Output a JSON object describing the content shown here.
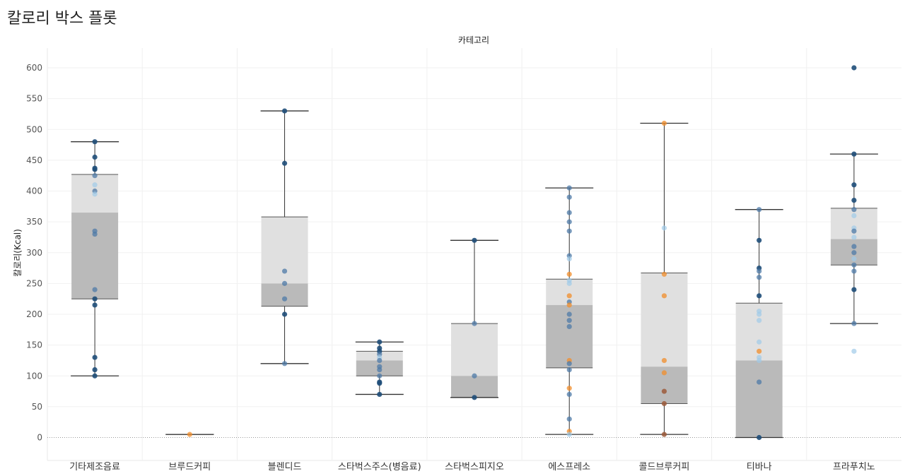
{
  "page": {
    "title": "칼로리 박스 플롯"
  },
  "chart_data": {
    "type": "box",
    "title": "칼로리 박스 플롯",
    "column_header": "카테고리",
    "ylabel": "칼로리(Kcal)",
    "ylim": [
      -40,
      640
    ],
    "yticks": [
      0,
      50,
      100,
      150,
      200,
      250,
      300,
      350,
      400,
      450,
      500,
      550,
      600
    ],
    "grid": true,
    "colors": {
      "box_upper": "#e0e0e0",
      "box_lower": "#bababa",
      "whisker": "#333333",
      "point_dark": "#1f4e79",
      "point_mid": "#4e79a7",
      "point_light": "#a0cbe8",
      "point_orange": "#f28e2b",
      "point_brown": "#9c5b3b"
    },
    "categories": [
      "기타제조음료",
      "브루드커피",
      "블렌디드",
      "스타벅스주스(병음료)",
      "스타벅스피지오",
      "에스프레소",
      "콜드브루커피",
      "티바나",
      "프라푸치노"
    ],
    "boxes": [
      {
        "category": "기타제조음료",
        "min": 100,
        "q1": 225,
        "median": 365,
        "q3": 427,
        "max": 480,
        "points": [
          [
            480,
            "d"
          ],
          [
            455,
            "d"
          ],
          [
            437,
            "d"
          ],
          [
            435,
            "d"
          ],
          [
            425,
            "m"
          ],
          [
            410,
            "l"
          ],
          [
            400,
            "m"
          ],
          [
            395,
            "l"
          ],
          [
            335,
            "m"
          ],
          [
            330,
            "m"
          ],
          [
            240,
            "m"
          ],
          [
            225,
            "d"
          ],
          [
            215,
            "d"
          ],
          [
            130,
            "d"
          ],
          [
            110,
            "d"
          ],
          [
            100,
            "d"
          ]
        ]
      },
      {
        "category": "브루드커피",
        "min": 5,
        "q1": 5,
        "median": 5,
        "q3": 5,
        "max": 5,
        "points": [
          [
            5,
            "o"
          ]
        ]
      },
      {
        "category": "블렌디드",
        "min": 120,
        "q1": 213,
        "median": 250,
        "q3": 358,
        "max": 530,
        "points": [
          [
            530,
            "d"
          ],
          [
            445,
            "d"
          ],
          [
            270,
            "m"
          ],
          [
            250,
            "m"
          ],
          [
            225,
            "m"
          ],
          [
            200,
            "d"
          ],
          [
            120,
            "m"
          ]
        ]
      },
      {
        "category": "스타벅스주스(병음료)",
        "min": 70,
        "q1": 100,
        "median": 125,
        "q3": 140,
        "max": 155,
        "points": [
          [
            155,
            "d"
          ],
          [
            145,
            "d"
          ],
          [
            140,
            "d"
          ],
          [
            135,
            "m"
          ],
          [
            130,
            "l"
          ],
          [
            125,
            "m"
          ],
          [
            115,
            "m"
          ],
          [
            110,
            "m"
          ],
          [
            100,
            "m"
          ],
          [
            90,
            "d"
          ],
          [
            88,
            "d"
          ],
          [
            70,
            "d"
          ]
        ]
      },
      {
        "category": "스타벅스피지오",
        "min": 65,
        "q1": 65,
        "median": 100,
        "q3": 185,
        "max": 320,
        "points": [
          [
            320,
            "d"
          ],
          [
            185,
            "m"
          ],
          [
            100,
            "m"
          ],
          [
            65,
            "d"
          ]
        ]
      },
      {
        "category": "에스프레소",
        "min": 5,
        "q1": 113,
        "median": 215,
        "q3": 257,
        "max": 405,
        "points": [
          [
            405,
            "m"
          ],
          [
            390,
            "m"
          ],
          [
            365,
            "m"
          ],
          [
            350,
            "m"
          ],
          [
            335,
            "m"
          ],
          [
            295,
            "m"
          ],
          [
            290,
            "l"
          ],
          [
            265,
            "o"
          ],
          [
            255,
            "l"
          ],
          [
            250,
            "l"
          ],
          [
            230,
            "o"
          ],
          [
            220,
            "m"
          ],
          [
            215,
            "o"
          ],
          [
            200,
            "m"
          ],
          [
            190,
            "m"
          ],
          [
            180,
            "m"
          ],
          [
            125,
            "o"
          ],
          [
            120,
            "m"
          ],
          [
            110,
            "m"
          ],
          [
            80,
            "o"
          ],
          [
            70,
            "m"
          ],
          [
            30,
            "m"
          ],
          [
            10,
            "o"
          ],
          [
            5,
            "l"
          ]
        ]
      },
      {
        "category": "콜드브루커피",
        "min": 5,
        "q1": 55,
        "median": 115,
        "q3": 267,
        "max": 510,
        "points": [
          [
            510,
            "o"
          ],
          [
            340,
            "l"
          ],
          [
            265,
            "o"
          ],
          [
            230,
            "o"
          ],
          [
            125,
            "o"
          ],
          [
            105,
            "o"
          ],
          [
            75,
            "b"
          ],
          [
            55,
            "b"
          ],
          [
            5,
            "b"
          ]
        ]
      },
      {
        "category": "티바나",
        "min": 0,
        "q1": 0,
        "median": 125,
        "q3": 218,
        "max": 370,
        "points": [
          [
            370,
            "m"
          ],
          [
            320,
            "d"
          ],
          [
            275,
            "d"
          ],
          [
            270,
            "m"
          ],
          [
            260,
            "m"
          ],
          [
            230,
            "d"
          ],
          [
            205,
            "l"
          ],
          [
            200,
            "l"
          ],
          [
            190,
            "l"
          ],
          [
            155,
            "l"
          ],
          [
            140,
            "o"
          ],
          [
            130,
            "l"
          ],
          [
            125,
            "l"
          ],
          [
            90,
            "m"
          ],
          [
            0,
            "d"
          ]
        ]
      },
      {
        "category": "프라푸치노",
        "min": 185,
        "q1": 280,
        "median": 322,
        "q3": 372,
        "max": 460,
        "points": [
          [
            600,
            "d"
          ],
          [
            460,
            "d"
          ],
          [
            410,
            "d"
          ],
          [
            385,
            "d"
          ],
          [
            370,
            "m"
          ],
          [
            360,
            "l"
          ],
          [
            340,
            "l"
          ],
          [
            335,
            "m"
          ],
          [
            325,
            "l"
          ],
          [
            310,
            "m"
          ],
          [
            300,
            "m"
          ],
          [
            290,
            "l"
          ],
          [
            280,
            "m"
          ],
          [
            270,
            "m"
          ],
          [
            240,
            "d"
          ],
          [
            185,
            "m"
          ],
          [
            140,
            "l"
          ]
        ]
      }
    ]
  }
}
